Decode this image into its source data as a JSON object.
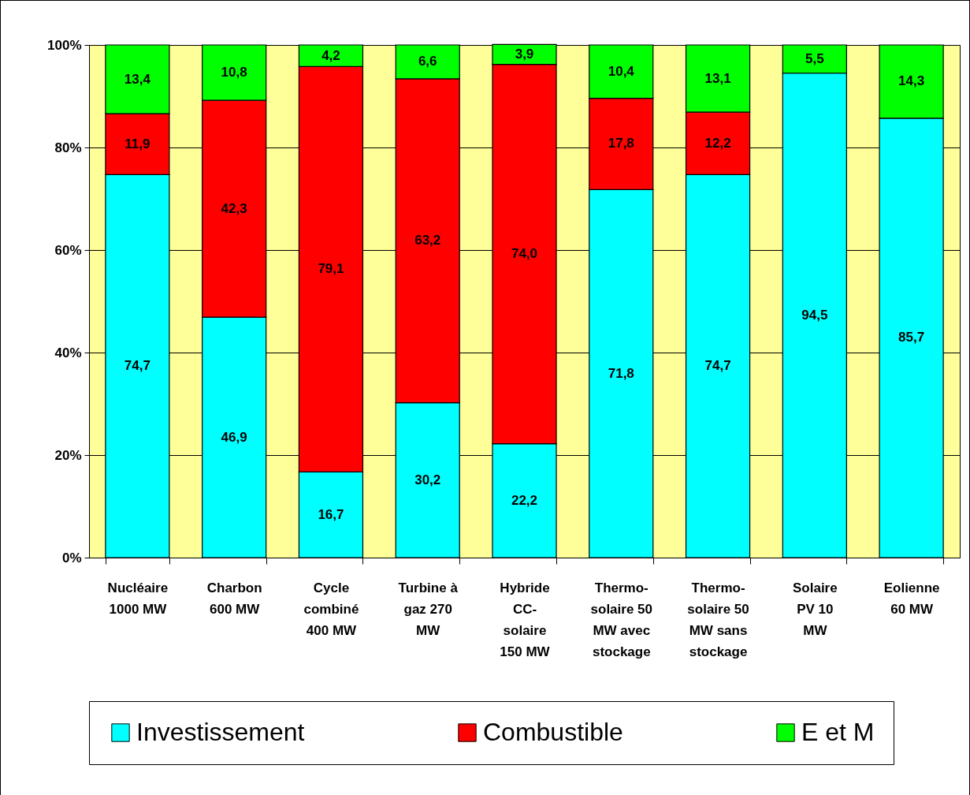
{
  "chart_data": {
    "type": "bar",
    "stacked": true,
    "grid": "y",
    "legend": "bottom",
    "categories": [
      "Nucléaire 1000 MW",
      "Charbon 600 MW",
      "Cycle combiné 400 MW",
      "Turbine à gaz 270 MW",
      "Hybride CC-solaire 150 MW",
      "Thermo-solaire 50 MW avec stockage",
      "Thermo-solaire 50 MW sans stockage",
      "Solaire PV 10 MW",
      "Eolienne 60 MW"
    ],
    "series": [
      {
        "name": "Investissement",
        "color": "#00ffff",
        "values": [
          74.7,
          46.9,
          16.7,
          30.2,
          22.2,
          71.8,
          74.7,
          94.5,
          85.7
        ],
        "value_labels": [
          "74,7",
          "46,9",
          "16,7",
          "30,2",
          "22,2",
          "71,8",
          "74,7",
          "94,5",
          "85,7"
        ]
      },
      {
        "name": "Combustible",
        "color": "#ff0000",
        "values": [
          11.9,
          42.3,
          79.1,
          63.2,
          74.0,
          17.8,
          12.2,
          null,
          null
        ],
        "value_labels": [
          "11,9",
          "42,3",
          "79,1",
          "63,2",
          "74,0",
          "17,8",
          "12,2",
          null,
          null
        ]
      },
      {
        "name": "E et M",
        "color": "#00ff00",
        "values": [
          13.4,
          10.8,
          4.2,
          6.6,
          3.9,
          10.4,
          13.1,
          5.5,
          14.3
        ],
        "value_labels": [
          "13,4",
          "10,8",
          "4,2",
          "6,6",
          "3,9",
          "10,4",
          "13,1",
          "5,5",
          "14,3"
        ]
      }
    ],
    "ylim": [
      0,
      100
    ],
    "yticks": [
      {
        "value": 0,
        "label": "0%"
      },
      {
        "value": 20,
        "label": "20%"
      },
      {
        "value": 40,
        "label": "40%"
      },
      {
        "value": 60,
        "label": "60%"
      },
      {
        "value": 80,
        "label": "80%"
      },
      {
        "value": 100,
        "label": "100%"
      }
    ]
  }
}
